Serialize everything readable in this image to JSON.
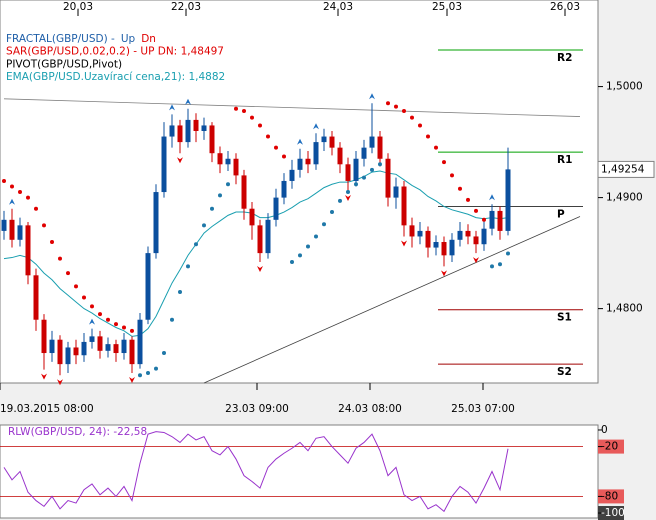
{
  "chart_data": [
    {
      "type": "candlestick",
      "open": [
        1.487,
        1.488,
        1.4862,
        1.4875,
        1.483,
        1.479,
        1.476,
        1.4772,
        1.475,
        1.4765,
        1.4758,
        1.477,
        1.4775,
        1.4762,
        1.4768,
        1.476,
        1.4772,
        1.475,
        1.479,
        1.485,
        1.4905,
        1.4955,
        1.4965,
        1.495,
        1.497,
        1.496,
        1.4965,
        1.494,
        1.493,
        1.4935,
        1.492,
        1.489,
        1.4875,
        1.485,
        1.488,
        1.49,
        1.4915,
        1.4925,
        1.4935,
        1.493,
        1.495,
        1.4955,
        1.4945,
        1.493,
        1.4915,
        1.4935,
        1.4945,
        1.4955,
        1.4935,
        1.49,
        1.491,
        1.4875,
        1.4865,
        1.487,
        1.4855,
        1.486,
        1.4848,
        1.4862,
        1.487,
        1.4865,
        1.4858,
        1.4872,
        1.4888,
        1.487
      ],
      "high": [
        1.4888,
        1.489,
        1.4882,
        1.4878,
        1.4836,
        1.4795,
        1.478,
        1.4776,
        1.477,
        1.4772,
        1.4778,
        1.4782,
        1.478,
        1.4774,
        1.4772,
        1.4778,
        1.4775,
        1.4796,
        1.4856,
        1.4912,
        1.4968,
        1.4975,
        1.497,
        1.498,
        1.4976,
        1.4972,
        1.4968,
        1.4946,
        1.4942,
        1.494,
        1.4925,
        1.4896,
        1.488,
        1.4886,
        1.4908,
        1.4922,
        1.4934,
        1.4944,
        1.4942,
        1.4958,
        1.4962,
        1.496,
        1.495,
        1.4936,
        1.4942,
        1.4952,
        1.4985,
        1.496,
        1.494,
        1.4918,
        1.4915,
        1.4882,
        1.4878,
        1.4874,
        1.4866,
        1.4865,
        1.4868,
        1.4878,
        1.4876,
        1.487,
        1.488,
        1.4894,
        1.4892,
        1.4945
      ],
      "low": [
        1.4862,
        1.4855,
        1.4856,
        1.4822,
        1.478,
        1.4745,
        1.4752,
        1.474,
        1.4742,
        1.475,
        1.4752,
        1.4764,
        1.4755,
        1.4756,
        1.4752,
        1.4754,
        1.4742,
        1.4746,
        1.4786,
        1.4845,
        1.49,
        1.4945,
        1.494,
        1.4945,
        1.495,
        1.4952,
        1.4932,
        1.4922,
        1.4924,
        1.4912,
        1.488,
        1.4862,
        1.4842,
        1.4845,
        1.4874,
        1.4894,
        1.4908,
        1.4918,
        1.4922,
        1.4925,
        1.4942,
        1.4938,
        1.4922,
        1.4906,
        1.491,
        1.4928,
        1.494,
        1.4928,
        1.4892,
        1.489,
        1.4865,
        1.4855,
        1.4858,
        1.4846,
        1.4848,
        1.4838,
        1.4842,
        1.4856,
        1.4858,
        1.485,
        1.4852,
        1.4866,
        1.4862,
        1.4866
      ],
      "close": [
        1.488,
        1.4862,
        1.4875,
        1.483,
        1.479,
        1.476,
        1.4772,
        1.475,
        1.4765,
        1.4758,
        1.477,
        1.4775,
        1.4762,
        1.4768,
        1.476,
        1.4772,
        1.475,
        1.479,
        1.485,
        1.4905,
        1.4955,
        1.4965,
        1.495,
        1.497,
        1.496,
        1.4965,
        1.494,
        1.493,
        1.4935,
        1.492,
        1.489,
        1.4875,
        1.485,
        1.488,
        1.49,
        1.4915,
        1.4925,
        1.4935,
        1.493,
        1.495,
        1.4955,
        1.4945,
        1.493,
        1.4915,
        1.4935,
        1.4945,
        1.4955,
        1.4935,
        1.49,
        1.491,
        1.4875,
        1.4865,
        1.487,
        1.4855,
        1.486,
        1.4848,
        1.4862,
        1.487,
        1.4865,
        1.4858,
        1.4872,
        1.4888,
        1.487,
        1.49254
      ],
      "up_color": "#0b4f9e",
      "down_color": "#cc0000",
      "ylim": [
        1.4733,
        1.5078
      ],
      "yticks": [
        {
          "value": 1.5,
          "label": "1,5000"
        },
        {
          "value": 1.49,
          "label": "1,4900"
        },
        {
          "value": 1.48,
          "label": "1,4800"
        }
      ],
      "last_price_label": "1,49254",
      "x_top_labels": [
        "20.03",
        "22.03",
        "24.03",
        "25.03",
        "26.03"
      ],
      "x_bottom_labels": [
        "19.03.2015 08:00",
        "23.03 09:00",
        "24.03 08:00",
        "25.03 07:00"
      ],
      "legend": [
        [
          {
            "text": "FRACTAL(GBP/USD)  -",
            "color": "#1f5fa8"
          },
          {
            "text": "Up",
            "color": "#1f5fa8"
          },
          {
            "text": "Dn",
            "color": "#e00000"
          }
        ],
        [
          {
            "text": "SAR(GBP/USD,0.02,0.2)  -  UP  DN: 1,48497",
            "color": "#e00000"
          }
        ],
        [
          {
            "text": "PIVOT(GBP/USD,Pivot)",
            "color": "#000000"
          }
        ],
        [
          {
            "text": "EMA(GBP/USD.Uzavírací cena,21): 1,4882",
            "color": "#1a9fb0"
          }
        ]
      ],
      "ema": {
        "color": "#1a9fb0",
        "values": [
          1.4845,
          1.4846,
          1.4848,
          1.4846,
          1.484,
          1.4832,
          1.4826,
          1.4818,
          1.4812,
          1.4806,
          1.48,
          1.4796,
          1.4791,
          1.4787,
          1.4783,
          1.478,
          1.4775,
          1.4776,
          1.4782,
          1.4793,
          1.4808,
          1.4823,
          1.4835,
          1.4848,
          1.4858,
          1.4868,
          1.4874,
          1.4879,
          1.4884,
          1.4887,
          1.4887,
          1.4886,
          1.4882,
          1.4882,
          1.4884,
          1.4887,
          1.4891,
          1.4896,
          1.4899,
          1.4904,
          1.4909,
          1.4912,
          1.4914,
          1.4914,
          1.4916,
          1.4919,
          1.4923,
          1.4924,
          1.4922,
          1.4921,
          1.4916,
          1.4911,
          1.4907,
          1.4901,
          1.4897,
          1.4892,
          1.4889,
          1.4887,
          1.4885,
          1.4882,
          1.4881,
          1.4882,
          1.4881,
          1.4882
        ]
      },
      "sar": {
        "color_above": "#e00000",
        "color_below": "#1f78a8",
        "values": [
          1.4915,
          1.491,
          1.4905,
          1.49,
          1.489,
          1.4875,
          1.486,
          1.4845,
          1.4832,
          1.482,
          1.481,
          1.4802,
          1.4795,
          1.479,
          1.4786,
          1.4783,
          1.478,
          1.474,
          1.4742,
          1.4746,
          1.476,
          1.479,
          1.4815,
          1.4838,
          1.4858,
          1.4875,
          1.489,
          1.4902,
          1.4912,
          1.498,
          1.4978,
          1.4972,
          1.4965,
          1.4955,
          1.4945,
          1.4937,
          1.4842,
          1.4848,
          1.4856,
          1.4865,
          1.4876,
          1.4887,
          1.4897,
          1.4905,
          1.4912,
          1.4918,
          1.4925,
          1.493,
          1.4985,
          1.4982,
          1.4978,
          1.4972,
          1.4965,
          1.4955,
          1.4945,
          1.4932,
          1.492,
          1.4908,
          1.4898,
          1.4888,
          1.488,
          1.4838,
          1.484,
          1.48497
        ]
      },
      "fractals": {
        "up_color": "#1f6fbf",
        "down_color": "#e00000",
        "up": [
          null,
          1.489,
          null,
          null,
          null,
          null,
          null,
          null,
          null,
          null,
          null,
          1.4782,
          null,
          null,
          null,
          null,
          null,
          null,
          null,
          null,
          null,
          1.4975,
          null,
          1.498,
          null,
          null,
          null,
          null,
          null,
          null,
          null,
          null,
          null,
          null,
          null,
          null,
          null,
          1.4944,
          null,
          1.4958,
          null,
          null,
          null,
          null,
          null,
          null,
          1.4985,
          null,
          null,
          null,
          null,
          null,
          null,
          null,
          null,
          null,
          null,
          null,
          null,
          null,
          null,
          1.4894,
          null,
          null
        ],
        "down": [
          null,
          null,
          null,
          null,
          null,
          1.4745,
          null,
          1.474,
          null,
          null,
          null,
          null,
          null,
          null,
          null,
          null,
          1.4742,
          null,
          null,
          null,
          null,
          null,
          1.494,
          null,
          null,
          null,
          null,
          null,
          null,
          null,
          null,
          null,
          1.4842,
          null,
          null,
          null,
          null,
          null,
          null,
          null,
          null,
          null,
          null,
          1.4906,
          null,
          null,
          null,
          null,
          null,
          null,
          1.4865,
          null,
          null,
          null,
          null,
          1.4838,
          null,
          null,
          null,
          1.485,
          null,
          null,
          null,
          null
        ]
      },
      "pivots": [
        {
          "name": "R2",
          "value": 1.5033,
          "color": "#00a000"
        },
        {
          "name": "R1",
          "value": 1.4941,
          "color": "#00a000"
        },
        {
          "name": "P",
          "value": 1.4892,
          "color": "#404040"
        },
        {
          "name": "S1",
          "value": 1.4799,
          "color": "#a00000"
        },
        {
          "name": "S2",
          "value": 1.475,
          "color": "#a00000"
        }
      ],
      "trendlines": [
        {
          "color": "#808080",
          "points": [
            [
              0,
              1.4989
            ],
            [
              72,
              1.4973
            ]
          ]
        },
        {
          "color": "#404040",
          "points": [
            [
              25,
              1.4733
            ],
            [
              72,
              1.4883
            ]
          ]
        }
      ]
    },
    {
      "type": "line",
      "title": "RLW(GBP/USD, 24): -22,58",
      "color": "#9933cc",
      "values": [
        -45,
        -60,
        -50,
        -75,
        -85,
        -92,
        -80,
        -95,
        -85,
        -88,
        -72,
        -65,
        -78,
        -70,
        -80,
        -68,
        -85,
        -40,
        -5,
        -2,
        -3,
        -8,
        -15,
        -5,
        -12,
        -8,
        -25,
        -30,
        -20,
        -35,
        -55,
        -62,
        -70,
        -45,
        -35,
        -28,
        -22,
        -15,
        -25,
        -10,
        -8,
        -20,
        -30,
        -40,
        -22,
        -15,
        -5,
        -25,
        -55,
        -45,
        -78,
        -85,
        -80,
        -95,
        -90,
        -98,
        -80,
        -68,
        -75,
        -88,
        -70,
        -50,
        -72,
        -22.58
      ],
      "ylim": [
        -106,
        6
      ],
      "yticks": [
        0,
        -20,
        -80,
        -100
      ],
      "levels": [
        -20,
        -80
      ],
      "level_color": "#c00000"
    }
  ]
}
